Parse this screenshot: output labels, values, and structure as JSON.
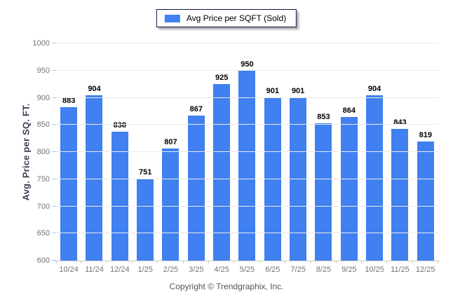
{
  "chart_data": {
    "type": "bar",
    "title": "",
    "xlabel": "",
    "ylabel": "Avg. Price per SQ. FT.",
    "categories": [
      "10/24",
      "11/24",
      "12/24",
      "1/25",
      "2/25",
      "3/25",
      "4/25",
      "5/25",
      "6/25",
      "7/25",
      "8/25",
      "9/25",
      "10/25",
      "11/25",
      "12/25"
    ],
    "series": [
      {
        "name": "Avg Price per SQFT (Sold)",
        "values": [
          883,
          904,
          838,
          751,
          807,
          867,
          925,
          950,
          901,
          901,
          853,
          864,
          904,
          843,
          819
        ]
      }
    ],
    "ylim": [
      600,
      1000
    ],
    "yticks": [
      600,
      650,
      700,
      750,
      800,
      850,
      900,
      950,
      1000
    ],
    "grid": true,
    "legend_position": "top-center",
    "bar_color": "#4080f0",
    "grid_color": "#e9e9e9",
    "axis_line_color": "#c9c9c9",
    "y_tick_color": "#a4c7f1",
    "x_tick_color": "#cccccc",
    "tick_label_color": "#737373",
    "value_label_color": "#000000",
    "y_title_color": "#3d3d54"
  },
  "legend": {
    "label": "Avg Price per SQFT (Sold)",
    "swatch_color": "#4080f0"
  },
  "footer": {
    "copyright": "Copyright © Trendgraphix, Inc."
  }
}
